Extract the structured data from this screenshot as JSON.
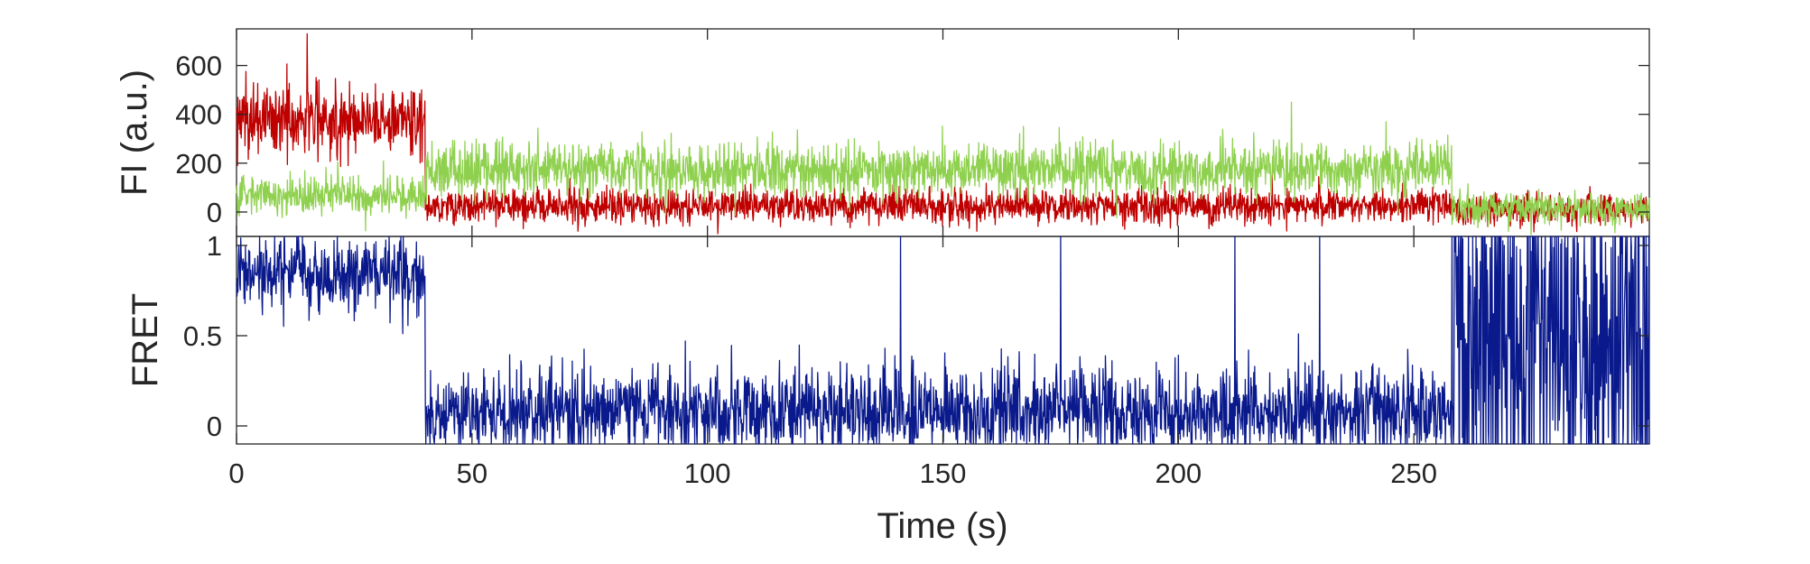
{
  "chart_data": [
    {
      "type": "line",
      "panel": "top",
      "ylabel": "FI (a.u.)",
      "xlabel": "",
      "xlim": [
        0,
        300
      ],
      "ylim": [
        -100,
        750
      ],
      "yticks": [
        0,
        200,
        400,
        600
      ],
      "ytick_labels": [
        "0",
        "200",
        "400",
        "600"
      ],
      "xticks": [
        0,
        50,
        100,
        150,
        200,
        250
      ],
      "show_xtick_labels": false,
      "grid": false,
      "series": [
        {
          "color": "#bf0000",
          "segments": [
            {
              "x_start": 0,
              "x_end": 40,
              "mean": 380,
              "noise": 75
            },
            {
              "x_start": 40,
              "x_end": 258,
              "mean": 25,
              "noise": 35
            },
            {
              "x_start": 258,
              "x_end": 300,
              "mean": 10,
              "noise": 30
            }
          ],
          "spikes": [
            {
              "x": 15,
              "y": 730
            }
          ]
        },
        {
          "color": "#8fd14f",
          "segments": [
            {
              "x_start": 0,
              "x_end": 40,
              "mean": 70,
              "noise": 40
            },
            {
              "x_start": 40,
              "x_end": 258,
              "mean": 175,
              "noise": 55
            },
            {
              "x_start": 258,
              "x_end": 300,
              "mean": 15,
              "noise": 35
            }
          ],
          "spikes": [
            {
              "x": 224,
              "y": 450
            }
          ]
        }
      ]
    },
    {
      "type": "line",
      "panel": "bottom",
      "ylabel": "FRET",
      "xlabel": "Time (s)",
      "xlim": [
        0,
        300
      ],
      "ylim": [
        -0.1,
        1.05
      ],
      "yticks": [
        0,
        0.5,
        1
      ],
      "ytick_labels": [
        "0",
        "0.5",
        "1"
      ],
      "xticks": [
        0,
        50,
        100,
        150,
        200,
        250
      ],
      "xtick_labels": [
        "0",
        "50",
        "100",
        "150",
        "200",
        "250"
      ],
      "grid": false,
      "series": [
        {
          "color": "#0a1a8c",
          "segments": [
            {
              "x_start": 0,
              "x_end": 40,
              "mean": 0.83,
              "noise": 0.1
            },
            {
              "x_start": 40,
              "x_end": 258,
              "mean": 0.08,
              "noise": 0.12
            },
            {
              "x_start": 258,
              "x_end": 300,
              "mean": 0.5,
              "noise": 0.6
            }
          ],
          "spikes": [
            {
              "x": 141,
              "y": 1.05
            },
            {
              "x": 175,
              "y": 1.05
            },
            {
              "x": 212,
              "y": 1.05
            },
            {
              "x": 230,
              "y": 1.05
            }
          ]
        }
      ]
    }
  ]
}
